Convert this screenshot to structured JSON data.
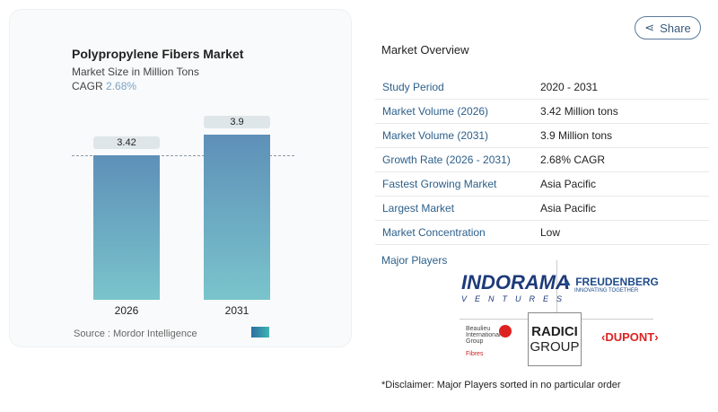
{
  "chart": {
    "title": "Polypropylene Fibers Market",
    "subtitle": "Market Size in Million Tons",
    "cagr_label": "CAGR",
    "cagr_value": "2.68%",
    "source": "Source :  Mordor Intelligence"
  },
  "chart_data": {
    "type": "bar",
    "categories": [
      "2026",
      "2031"
    ],
    "values": [
      3.42,
      3.9
    ],
    "data_labels": [
      "3.42",
      "3.9"
    ],
    "colors": [
      "#5e90b8",
      "#7ac4cc"
    ]
  },
  "share_label": "Share",
  "overview": {
    "title": "Market Overview",
    "rows": [
      {
        "k": "Study Period",
        "v": "2020 - 2031"
      },
      {
        "k": "Market Volume (2026)",
        "v": "3.42 Million tons"
      },
      {
        "k": "Market Volume (2031)",
        "v": "3.9 Million tons"
      },
      {
        "k": "Growth Rate (2026 - 2031)",
        "v": "2.68% CAGR"
      },
      {
        "k": "Fastest Growing Market",
        "v": "Asia Pacific"
      },
      {
        "k": "Largest Market",
        "v": "Asia Pacific"
      },
      {
        "k": "Market Concentration",
        "v": "Low"
      }
    ]
  },
  "major_players": {
    "label": "Major Players",
    "logos": [
      "INDORAMA VENTURES",
      "FREUDENBERG INNOVATING TOGETHER",
      "Beaulieu International Group Fibres",
      "RADICI GROUP",
      "DUPONT"
    ]
  },
  "disclaimer": "*Disclaimer: Major Players sorted in no particular order"
}
